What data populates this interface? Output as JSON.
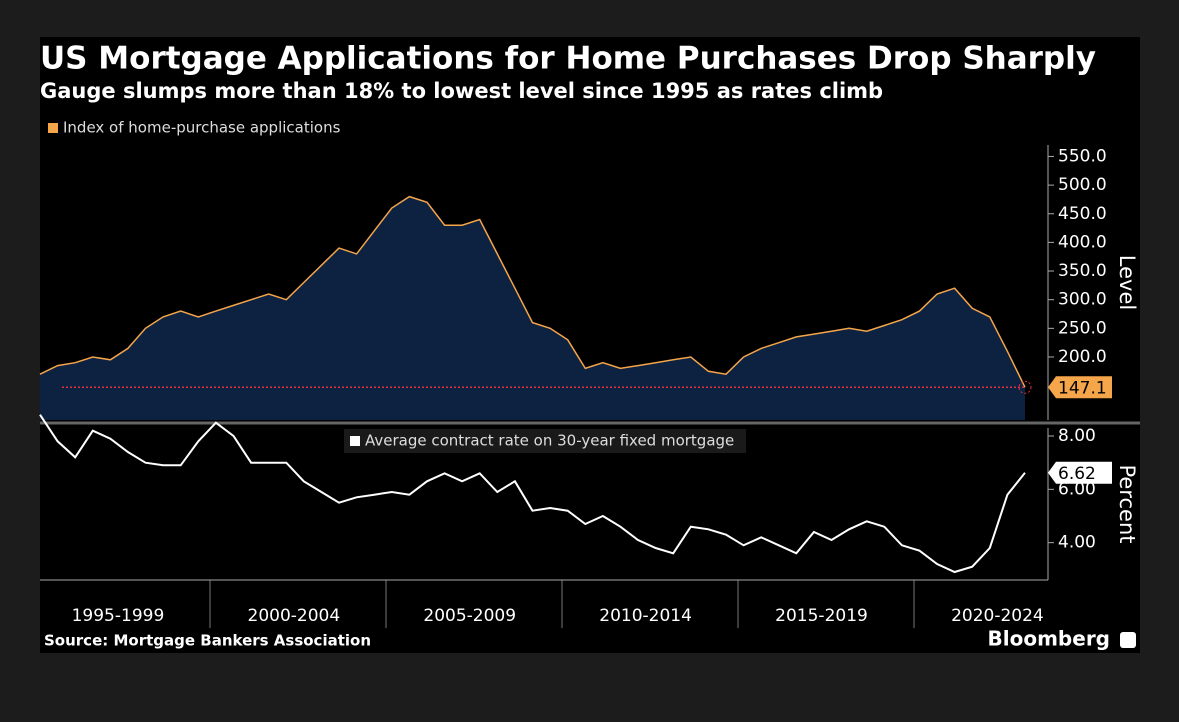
{
  "title": "US Mortgage Applications for Home Purchases Drop Sharply",
  "subtitle": "Gauge slumps more than 18% to lowest level since 1995 as rates climb",
  "source": "Source: Mortgage Bankers Association",
  "brand": "Bloomberg",
  "chart_data": [
    {
      "type": "area",
      "ylabel": "Level",
      "series": [
        {
          "name": "Index of home-purchase applications",
          "color": "#f5a54a",
          "values": [
            170,
            185,
            190,
            200,
            195,
            215,
            250,
            270,
            280,
            270,
            280,
            290,
            300,
            310,
            300,
            330,
            360,
            390,
            380,
            420,
            460,
            480,
            470,
            430,
            430,
            440,
            380,
            320,
            260,
            250,
            230,
            180,
            190,
            180,
            185,
            190,
            195,
            200,
            175,
            170,
            200,
            215,
            225,
            235,
            240,
            245,
            250,
            245,
            255,
            265,
            280,
            310,
            320,
            285,
            270,
            210,
            147.1
          ]
        }
      ],
      "ylim": [
        90,
        570
      ],
      "yticks": [
        {
          "value": 200,
          "label": "200.0"
        },
        {
          "value": 250,
          "label": "250.0"
        },
        {
          "value": 300,
          "label": "300.0"
        },
        {
          "value": 350,
          "label": "350.0"
        },
        {
          "value": 400,
          "label": "400.0"
        },
        {
          "value": 450,
          "label": "450.0"
        },
        {
          "value": 500,
          "label": "500.0"
        },
        {
          "value": 550,
          "label": "550.0"
        }
      ]
    },
    {
      "type": "line",
      "ylabel": "Percent",
      "categories": [
        null,
        null,
        null,
        null,
        null,
        "1995-1999",
        null,
        null,
        null,
        null,
        null,
        null,
        null,
        null,
        null,
        "2000-2004",
        null,
        null,
        null,
        null,
        null,
        null,
        null,
        null,
        null,
        "2005-2009",
        null,
        null,
        null,
        null,
        null,
        null,
        null,
        null,
        null,
        "2010-2014",
        null,
        null,
        null,
        null,
        null,
        null,
        null,
        null,
        null,
        "2015-2019",
        null,
        null,
        null,
        null,
        null,
        null,
        null,
        null,
        null,
        "2020-2024",
        null
      ],
      "series": [
        {
          "name": "Average contract rate on 30-year fixed mortgage",
          "color": "#ffffff",
          "values": [
            8.8,
            7.8,
            7.2,
            8.2,
            7.9,
            7.4,
            7.0,
            6.9,
            6.9,
            7.8,
            8.5,
            8.0,
            7.0,
            7.0,
            7.0,
            6.3,
            5.9,
            5.5,
            5.7,
            5.8,
            5.9,
            5.8,
            6.3,
            6.6,
            6.3,
            6.6,
            5.9,
            6.3,
            5.2,
            5.3,
            5.2,
            4.7,
            5.0,
            4.6,
            4.1,
            3.8,
            3.6,
            4.6,
            4.5,
            4.3,
            3.9,
            4.2,
            3.9,
            3.6,
            4.4,
            4.1,
            4.5,
            4.8,
            4.6,
            3.9,
            3.7,
            3.2,
            2.9,
            3.1,
            3.8,
            5.8,
            6.62
          ]
        }
      ],
      "ylim": [
        2.6,
        8.3
      ],
      "yticks": [
        {
          "value": 4,
          "label": "4.00"
        },
        {
          "value": 6,
          "label": "6.00"
        },
        {
          "value": 8,
          "label": "8.00"
        }
      ]
    }
  ]
}
